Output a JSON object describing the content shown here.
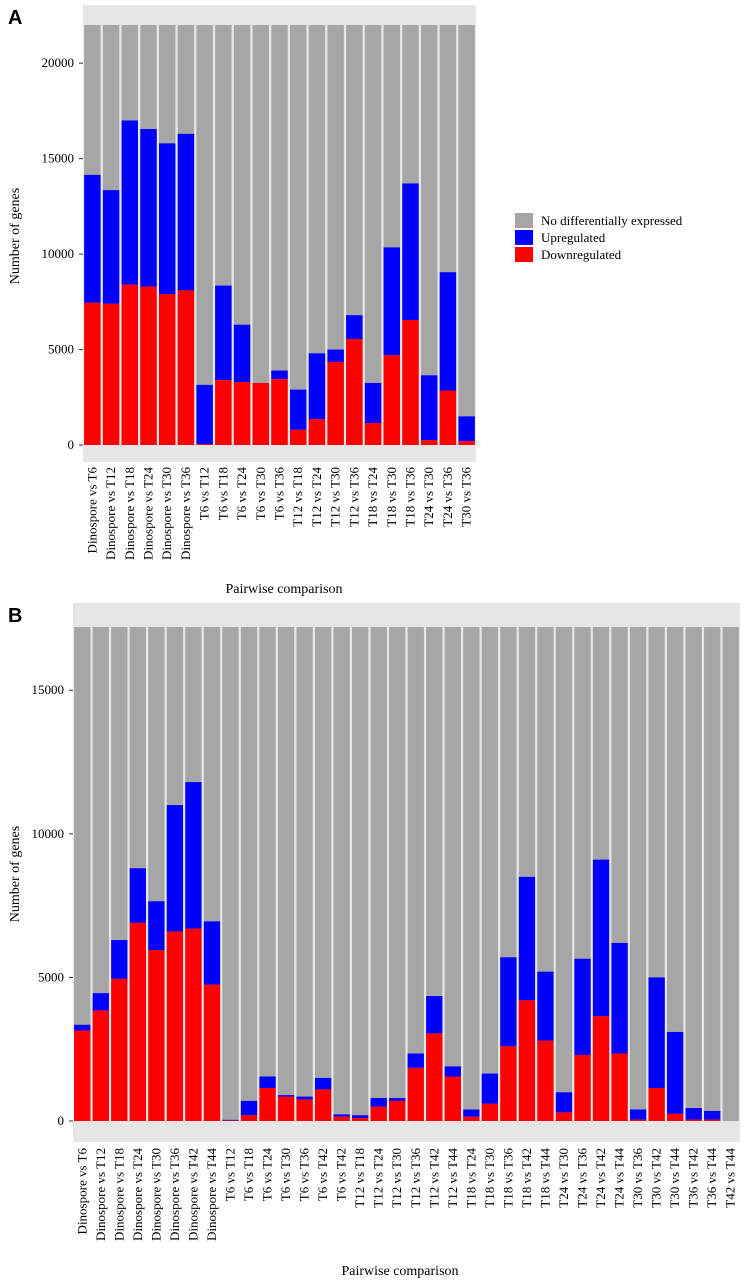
{
  "colors": {
    "none": "#a6a6a6",
    "up": "#0000ff",
    "down": "#ff0000",
    "panel": "#e6e6e6"
  },
  "legend": {
    "items": [
      {
        "key": "none",
        "label": "No differentially expressed",
        "color": "#a6a6a6"
      },
      {
        "key": "up",
        "label": "Upregulated",
        "color": "#0000ff"
      },
      {
        "key": "down",
        "label": "Downregulated",
        "color": "#ff0000"
      }
    ]
  },
  "chart_data": [
    {
      "panel": "A",
      "type": "bar",
      "stacked": true,
      "xlabel": "Pairwise comparison",
      "ylabel": "Number of genes",
      "ylim": [
        0,
        22000
      ],
      "yticks": [
        0,
        5000,
        10000,
        15000,
        20000
      ],
      "total": 22000,
      "categories": [
        "Dinospore vs T6",
        "Dinospore vs T12",
        "Dinospore vs T18",
        "Dinospore vs T24",
        "Dinospore vs T30",
        "Dinospore vs T36",
        "T6 vs T12",
        "T6 vs T18",
        "T6 vs T24",
        "T6 vs T30",
        "T6 vs T36",
        "T12 vs T18",
        "T12 vs T24",
        "T12 vs T30",
        "T12 vs T36",
        "T18 vs T24",
        "T18 vs T30",
        "T18 vs T36",
        "T24 vs T30",
        "T24 vs T36",
        "T30 vs T36"
      ],
      "series": [
        {
          "name": "Downregulated",
          "values": [
            7450,
            7400,
            8400,
            8300,
            7900,
            8100,
            50,
            3400,
            3300,
            3250,
            3450,
            800,
            1350,
            4350,
            5550,
            1150,
            4700,
            6550,
            250,
            2850,
            200
          ]
        },
        {
          "name": "Upregulated",
          "values": [
            6700,
            5950,
            8600,
            8250,
            7900,
            8200,
            3100,
            4950,
            3000,
            0,
            450,
            2100,
            3450,
            650,
            1250,
            2100,
            5650,
            7150,
            3400,
            6200,
            1300
          ]
        }
      ]
    },
    {
      "panel": "B",
      "type": "bar",
      "stacked": true,
      "xlabel": "Pairwise comparison",
      "ylabel": "Number of genes",
      "ylim": [
        0,
        17200
      ],
      "yticks": [
        0,
        5000,
        10000,
        15000
      ],
      "total": 17200,
      "categories": [
        "Dinospore vs T6",
        "Dinospore vs T12",
        "Dinospore vs T18",
        "Dinospore vs T24",
        "Dinospore vs T30",
        "Dinospore vs T36",
        "Dinospore vs T42",
        "Dinospore vs T44",
        "T6 vs T12",
        "T6 vs T18",
        "T6 vs T24",
        "T6 vs T30",
        "T6 vs T36",
        "T6 vs T42",
        "T6 vs T42",
        "T12 vs T18",
        "T12 vs T24",
        "T12 vs T30",
        "T12 vs T36",
        "T12 vs T42",
        "T12 vs T44",
        "T18 vs T24",
        "T18 vs T30",
        "T18 vs T36",
        "T18 vs T42",
        "T18 vs T44",
        "T24 vs T30",
        "T24 vs T36",
        "T24 vs T42",
        "T24 vs T44",
        "T30 vs T36",
        "T30 vs T42",
        "T30 vs T44",
        "T36 vs T42",
        "T36 vs T44",
        "T42 vs T44"
      ],
      "series": [
        {
          "name": "Downregulated",
          "values": [
            3150,
            3850,
            4950,
            6900,
            5950,
            6600,
            6700,
            4750,
            20,
            200,
            1150,
            850,
            750,
            1100,
            150,
            100,
            500,
            700,
            1850,
            3050,
            1550,
            150,
            600,
            2600,
            4200,
            2800,
            300,
            2300,
            3650,
            2350,
            50,
            1150,
            250,
            50,
            50,
            0
          ]
        },
        {
          "name": "Upregulated",
          "values": [
            200,
            600,
            1350,
            1900,
            1700,
            4400,
            5100,
            2200,
            20,
            500,
            400,
            50,
            100,
            400,
            80,
            100,
            300,
            100,
            500,
            1300,
            350,
            250,
            1050,
            3100,
            4300,
            2400,
            700,
            3350,
            5450,
            3850,
            350,
            3850,
            2850,
            400,
            300,
            0
          ]
        }
      ]
    }
  ]
}
